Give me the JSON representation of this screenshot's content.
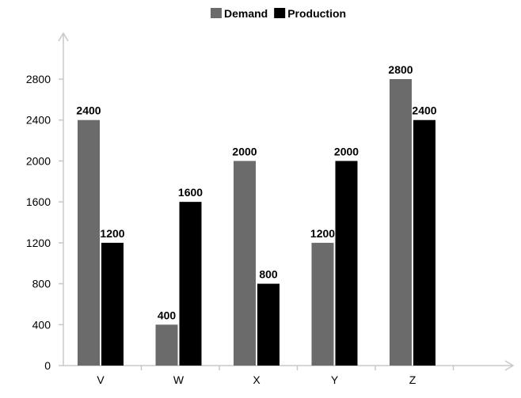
{
  "chart_data": {
    "type": "bar",
    "categories": [
      "V",
      "W",
      "X",
      "Y",
      "Z"
    ],
    "series": [
      {
        "name": "Demand",
        "values": [
          2400,
          400,
          2000,
          1200,
          2800
        ],
        "color": "#6b6b6b"
      },
      {
        "name": "Production",
        "values": [
          1200,
          1600,
          800,
          2000,
          2400
        ],
        "color": "#000000"
      }
    ],
    "yticks": [
      0,
      400,
      800,
      1200,
      1600,
      2000,
      2400,
      2800
    ],
    "ylim": [
      0,
      3200
    ],
    "grid": false,
    "legend_position": "top-center",
    "axis_color": "#c8c8c8"
  }
}
